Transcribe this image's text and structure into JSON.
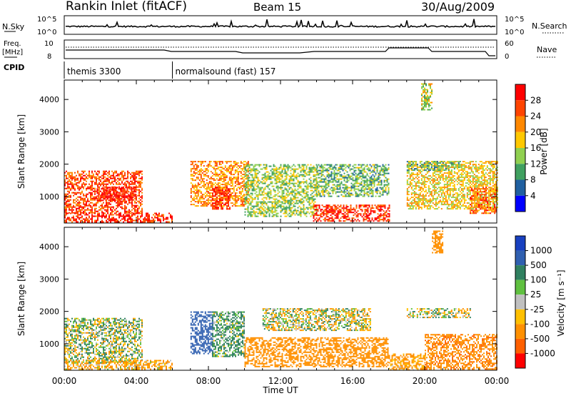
{
  "header": {
    "station": "Rankin Inlet (fitACF)",
    "beam": "Beam 15",
    "date": "30/Aug/2009"
  },
  "strip_labels": {
    "nsky": "N.Sky",
    "freq_line1": "Freq.",
    "freq_line2": "[MHz]",
    "cpid": "CPID",
    "nsearch": "N.Search",
    "nave": "Nave"
  },
  "strip_ticks": {
    "nsky_top": "10^5",
    "nsky_bottom": "10^0",
    "freq_top": "10",
    "freq_bottom": "8",
    "nave_top": "60",
    "nave_bottom": "0"
  },
  "cpid_segments": [
    {
      "label": "themis 3300",
      "start_hour": 0
    },
    {
      "label": "normalsound (fast) 157",
      "start_hour": 6
    }
  ],
  "time_axis": {
    "label": "Time UT",
    "ticks": [
      "00:00",
      "04:00",
      "08:00",
      "12:00",
      "16:00",
      "20:00",
      "00:00"
    ],
    "range_hours": [
      0,
      24
    ]
  },
  "range_axis": {
    "label": "Slant Range [km]",
    "ticks": [
      "1000",
      "2000",
      "3000",
      "4000"
    ],
    "range_km": [
      180,
      4600
    ]
  },
  "power_colorbar": {
    "label": "Power [dB]",
    "ticks": [
      "28",
      "24",
      "20",
      "16",
      "12",
      "8",
      "4"
    ],
    "colors": [
      "#ff0000",
      "#ff4400",
      "#ff8800",
      "#ffc800",
      "#90d050",
      "#40a060",
      "#2060a0",
      "#0000ff"
    ]
  },
  "velocity_colorbar": {
    "label": "Velocity [m s⁻¹]",
    "ticks": [
      "1000",
      "500",
      "100",
      "25",
      "-25",
      "-100",
      "-500",
      "-1000"
    ],
    "colors": [
      "#1840c0",
      "#3060b0",
      "#308060",
      "#60c040",
      "#c0c0c0",
      "#ffc000",
      "#ff9000",
      "#ff6000",
      "#ff0000"
    ]
  },
  "chart_data": [
    {
      "type": "heatmap",
      "quantity": "power",
      "x_range_hours": [
        0,
        24
      ],
      "y_range_km": [
        180,
        4600
      ],
      "z_range_db": [
        0,
        30
      ],
      "regions": [
        {
          "t0": 0,
          "t1": 4.3,
          "r0": 500,
          "r1": 1800,
          "value": 24
        },
        {
          "t0": 0,
          "t1": 6,
          "r0": 200,
          "r1": 500,
          "value": 26
        },
        {
          "t0": 1.8,
          "t1": 4,
          "r0": 900,
          "r1": 1300,
          "value": 28
        },
        {
          "t0": 7,
          "t1": 10.2,
          "r0": 700,
          "r1": 2100,
          "value": 20
        },
        {
          "t0": 8.2,
          "t1": 9.2,
          "r0": 600,
          "r1": 1300,
          "value": 27
        },
        {
          "t0": 10,
          "t1": 14,
          "r0": 400,
          "r1": 2000,
          "value": 12
        },
        {
          "t0": 13.8,
          "t1": 18,
          "r0": 250,
          "r1": 750,
          "value": 26
        },
        {
          "t0": 14,
          "t1": 18,
          "r0": 1000,
          "r1": 2000,
          "value": 10
        },
        {
          "t0": 19,
          "t1": 24,
          "r0": 600,
          "r1": 2100,
          "value": 16
        },
        {
          "t0": 22.5,
          "t1": 24,
          "r0": 500,
          "r1": 1300,
          "value": 22
        },
        {
          "t0": 19,
          "t1": 22,
          "r0": 1800,
          "r1": 2100,
          "value": 10
        },
        {
          "t0": 19.8,
          "t1": 20.4,
          "r0": 3700,
          "r1": 4500,
          "value": 14
        }
      ]
    },
    {
      "type": "heatmap",
      "quantity": "velocity",
      "x_range_hours": [
        0,
        24
      ],
      "y_range_km": [
        180,
        4600
      ],
      "z_range_ms": [
        -1000,
        1000
      ],
      "regions": [
        {
          "t0": 0,
          "t1": 4.3,
          "r0": 400,
          "r1": 1800,
          "value": 50
        },
        {
          "t0": 0,
          "t1": 6,
          "r0": 200,
          "r1": 500,
          "value": -150
        },
        {
          "t0": 7,
          "t1": 8.2,
          "r0": 700,
          "r1": 2000,
          "value": 800
        },
        {
          "t0": 8.2,
          "t1": 10,
          "r0": 600,
          "r1": 2000,
          "value": 150
        },
        {
          "t0": 10,
          "t1": 18,
          "r0": 300,
          "r1": 1200,
          "value": -300
        },
        {
          "t0": 11,
          "t1": 17,
          "r0": 1400,
          "r1": 2100,
          "value": 0
        },
        {
          "t0": 18,
          "t1": 20,
          "r0": 200,
          "r1": 700,
          "value": -200
        },
        {
          "t0": 19,
          "t1": 22.5,
          "r0": 1800,
          "r1": 2100,
          "value": 0
        },
        {
          "t0": 20,
          "t1": 24,
          "r0": 200,
          "r1": 1300,
          "value": -400
        },
        {
          "t0": 20.4,
          "t1": 21,
          "r0": 3800,
          "r1": 4500,
          "value": -300
        }
      ]
    }
  ]
}
